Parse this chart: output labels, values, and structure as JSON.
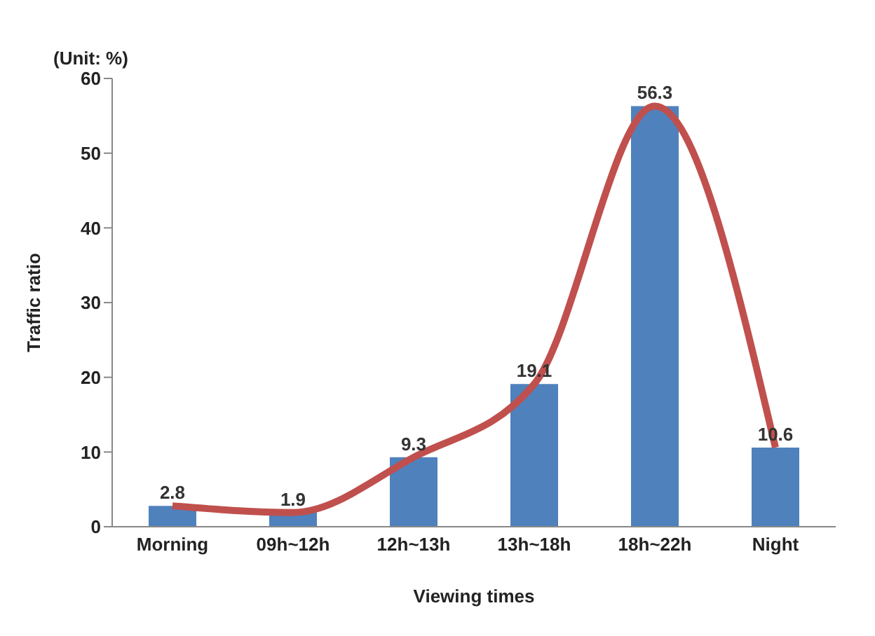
{
  "chart_data": {
    "type": "bar",
    "xlabel": "Viewing times",
    "ylabel": "Traffic ratio",
    "annotations": [
      "(Unit: %)"
    ],
    "categories": [
      "Morning",
      "09h~12h",
      "12h~13h",
      "13h~18h",
      "18h~22h",
      "Night"
    ],
    "series": [
      {
        "color": "#4f81bd",
        "values": [
          2.8,
          1.9,
          9.3,
          19.1,
          56.3,
          10.6
        ],
        "value_labels": [
          "2.8",
          "1.9",
          "9.3",
          "19.1",
          "56.3",
          "10.6"
        ]
      },
      {
        "type": "line",
        "color": "#c0504d",
        "values": [
          2.8,
          1.9,
          9.3,
          19.1,
          56.3,
          10.6
        ]
      }
    ],
    "ylim": [
      0,
      60
    ],
    "yticks": [
      0,
      10,
      20,
      30,
      40,
      50,
      60
    ],
    "grid": false,
    "legend": false,
    "marker": "none",
    "line_style": "solid"
  }
}
